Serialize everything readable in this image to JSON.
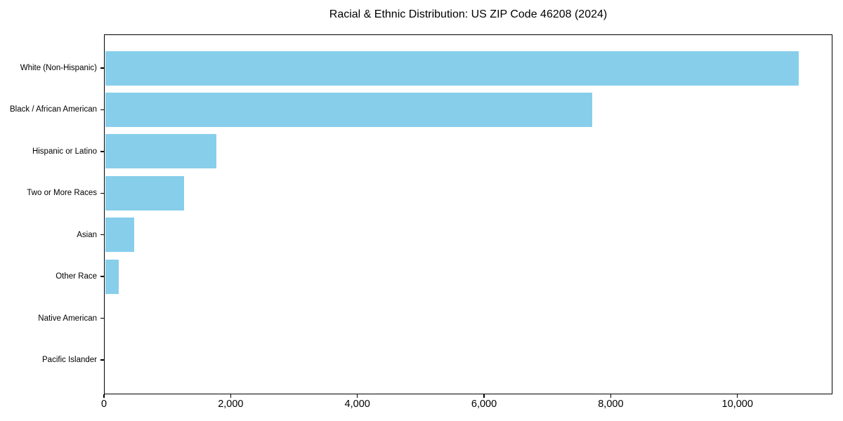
{
  "chart_data": {
    "type": "bar",
    "orientation": "horizontal",
    "title": "Racial & Ethnic Distribution: US ZIP Code 46208 (2024)",
    "categories": [
      "White (Non-Hispanic)",
      "Black / African American",
      "Hispanic or Latino",
      "Two or More Races",
      "Asian",
      "Other Race",
      "Native American",
      "Pacific Islander"
    ],
    "values": [
      10950,
      7690,
      1760,
      1250,
      465,
      220,
      0,
      0
    ],
    "xlabel": "",
    "ylabel": "",
    "xlim": [
      0,
      11500
    ],
    "xticks": [
      {
        "value": 0,
        "label": "0"
      },
      {
        "value": 2000,
        "label": "2,000"
      },
      {
        "value": 4000,
        "label": "4,000"
      },
      {
        "value": 6000,
        "label": "6,000"
      },
      {
        "value": 8000,
        "label": "8,000"
      },
      {
        "value": 10000,
        "label": "10,000"
      }
    ],
    "grid": false,
    "legend": "none",
    "bar_color": "#87CEEB",
    "axis_color": "#000000",
    "text_color": "#000000",
    "background_color": "#FFFFFF"
  }
}
